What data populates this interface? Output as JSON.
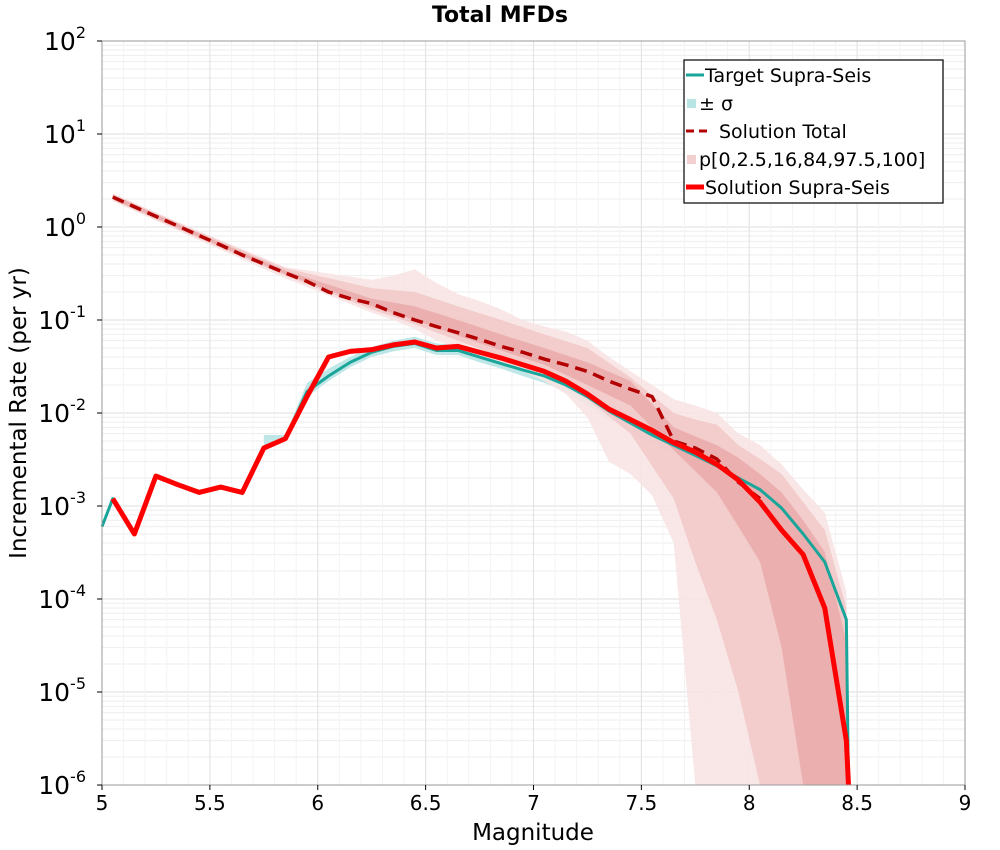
{
  "chart_data": {
    "type": "line",
    "title": "Total MFDs",
    "xlabel": "Magnitude",
    "ylabel": "Incremental Rate (per yr)",
    "xlim": [
      5,
      9
    ],
    "ylim": [
      1e-06,
      100
    ],
    "yscale": "log",
    "grid": true,
    "legend_position": "top-right",
    "x_ticks": [
      "5",
      "5.5",
      "6",
      "6.5",
      "7",
      "7.5",
      "8",
      "8.5",
      "9"
    ],
    "y_ticks": [
      {
        "base": "10",
        "exp": "2"
      },
      {
        "base": "10",
        "exp": "1"
      },
      {
        "base": "10",
        "exp": "0"
      },
      {
        "base": "10",
        "exp": "-1"
      },
      {
        "base": "10",
        "exp": "-2"
      },
      {
        "base": "10",
        "exp": "-3"
      },
      {
        "base": "10",
        "exp": "-4"
      },
      {
        "base": "10",
        "exp": "-5"
      },
      {
        "base": "10",
        "exp": "-6"
      }
    ],
    "legend": [
      {
        "label": "Target Supra-Seis",
        "style": "line",
        "color": "#1aa59a"
      },
      {
        "label": "± σ",
        "style": "patch",
        "color": "#b9e4e4"
      },
      {
        "label": "Solution Total",
        "style": "dashed",
        "color": "#b30000"
      },
      {
        "label": "p[0,2.5,16,84,97.5,100]",
        "style": "patch",
        "color": "#f2d0d0"
      },
      {
        "label": "Solution Supra-Seis",
        "style": "thick",
        "color": "#ff0000"
      }
    ],
    "series": [
      {
        "name": "Target Supra-Seis",
        "color": "#1aa59a",
        "x": [
          5.0,
          5.05,
          5.15,
          5.25,
          5.35,
          5.45,
          5.55,
          5.65,
          5.75,
          5.85,
          5.95,
          6.05,
          6.15,
          6.25,
          6.35,
          6.45,
          6.55,
          6.65,
          6.75,
          6.85,
          6.95,
          7.05,
          7.15,
          7.25,
          7.35,
          7.45,
          7.55,
          7.65,
          7.75,
          7.85,
          7.95,
          8.05,
          8.15,
          8.25,
          8.35,
          8.45,
          8.46
        ],
        "y": [
          0.0006,
          0.0012,
          0.0005,
          0.0021,
          0.0017,
          0.0014,
          0.0016,
          0.0014,
          0.0042,
          0.0053,
          0.017,
          0.025,
          0.035,
          0.045,
          0.052,
          0.056,
          0.047,
          0.047,
          0.04,
          0.034,
          0.029,
          0.025,
          0.02,
          0.015,
          0.0105,
          0.0078,
          0.0058,
          0.0045,
          0.0035,
          0.0027,
          0.002,
          0.0015,
          0.00095,
          0.0005,
          0.00025,
          6e-05,
          1e-06
        ]
      },
      {
        "name": "Solution Total",
        "color": "#b30000",
        "x": [
          5.05,
          5.15,
          5.25,
          5.35,
          5.45,
          5.55,
          5.65,
          5.75,
          5.85,
          5.95,
          6.05,
          6.15,
          6.25,
          6.35,
          6.45,
          6.55,
          6.65,
          6.75,
          6.85,
          6.95,
          7.05,
          7.15,
          7.25,
          7.35,
          7.45,
          7.55,
          7.65,
          7.75,
          7.85,
          7.95,
          8.05
        ],
        "y": [
          2.1,
          1.65,
          1.3,
          1.03,
          0.81,
          0.64,
          0.5,
          0.4,
          0.32,
          0.26,
          0.2,
          0.17,
          0.15,
          0.12,
          0.1,
          0.085,
          0.073,
          0.062,
          0.052,
          0.045,
          0.038,
          0.033,
          0.028,
          0.022,
          0.018,
          0.015,
          0.005,
          0.0042,
          0.0032,
          0.0018,
          0.0012
        ]
      },
      {
        "name": "Solution Supra-Seis",
        "color": "#ff0000",
        "x": [
          5.05,
          5.15,
          5.25,
          5.35,
          5.45,
          5.55,
          5.65,
          5.75,
          5.85,
          5.95,
          6.05,
          6.15,
          6.25,
          6.35,
          6.45,
          6.55,
          6.65,
          6.75,
          6.85,
          6.95,
          7.05,
          7.15,
          7.25,
          7.35,
          7.45,
          7.55,
          7.65,
          7.75,
          7.85,
          7.95,
          8.05,
          8.15,
          8.25,
          8.35,
          8.45,
          8.46
        ],
        "y": [
          0.0012,
          0.0005,
          0.0021,
          0.0017,
          0.0014,
          0.0016,
          0.0014,
          0.0042,
          0.0053,
          0.015,
          0.04,
          0.046,
          0.048,
          0.054,
          0.058,
          0.05,
          0.052,
          0.045,
          0.039,
          0.033,
          0.028,
          0.022,
          0.016,
          0.011,
          0.0085,
          0.0065,
          0.0048,
          0.0038,
          0.0028,
          0.0019,
          0.0011,
          0.00055,
          0.0003,
          8e-05,
          3e-06,
          1e-06
        ]
      }
    ],
    "bands": [
      {
        "name": "± σ",
        "color": "#b9e4e4",
        "x": [
          5.75,
          5.85,
          5.95,
          6.05,
          6.15,
          6.25,
          6.35,
          6.45,
          6.55,
          6.65,
          6.75,
          6.85,
          6.95,
          7.05,
          7.15,
          7.25,
          7.35,
          7.45,
          7.55,
          7.65,
          7.75,
          7.85,
          7.95,
          8.05,
          8.15,
          8.25,
          8.35,
          8.45
        ],
        "lower": [
          0.0045,
          0.005,
          0.015,
          0.022,
          0.031,
          0.04,
          0.046,
          0.05,
          0.042,
          0.042,
          0.035,
          0.03,
          0.025,
          0.021,
          0.017,
          0.012,
          0.0085,
          0.0063,
          0.0047,
          0.0036,
          0.0028,
          0.0021,
          0.0016,
          0.0011,
          0.0007,
          0.00035,
          0.00016,
          3.5e-05
        ],
        "upper": [
          0.0058,
          0.0058,
          0.021,
          0.03,
          0.04,
          0.051,
          0.06,
          0.066,
          0.056,
          0.054,
          0.047,
          0.04,
          0.034,
          0.03,
          0.024,
          0.018,
          0.013,
          0.0096,
          0.0072,
          0.0056,
          0.0044,
          0.0034,
          0.0026,
          0.002,
          0.0013,
          0.0007,
          0.00035,
          9e-05
        ]
      },
      {
        "name": "p[0,100]",
        "color": "#f8e3e3",
        "x": [
          5.05,
          5.45,
          5.85,
          6.25,
          6.35,
          6.45,
          6.55,
          6.65,
          6.75,
          6.85,
          6.95,
          7.05,
          7.15,
          7.25,
          7.35,
          7.45,
          7.55,
          7.65,
          7.75,
          7.85,
          7.95,
          8.05,
          8.15,
          8.25,
          8.35,
          8.45
        ],
        "lower": [
          1.9,
          0.72,
          0.28,
          0.12,
          0.1,
          0.08,
          0.06,
          0.05,
          0.04,
          0.033,
          0.028,
          0.022,
          0.016,
          0.009,
          0.003,
          0.0022,
          0.0013,
          0.0004,
          1e-06,
          1e-06,
          1e-06,
          1e-06,
          1e-06,
          1e-06,
          1e-06,
          1e-06
        ],
        "upper": [
          2.3,
          0.9,
          0.37,
          0.27,
          0.3,
          0.35,
          0.25,
          0.19,
          0.16,
          0.13,
          0.1,
          0.085,
          0.075,
          0.06,
          0.04,
          0.028,
          0.02,
          0.014,
          0.012,
          0.01,
          0.006,
          0.0045,
          0.0028,
          0.0015,
          0.00085,
          0.00012
        ]
      },
      {
        "name": "p[2.5,97.5]",
        "color": "#f2c9c9",
        "x": [
          5.05,
          5.45,
          5.85,
          6.25,
          6.45,
          6.65,
          6.85,
          7.05,
          7.25,
          7.45,
          7.65,
          7.75,
          7.85,
          7.95,
          8.05,
          8.15,
          8.25,
          8.35,
          8.45
        ],
        "lower": [
          1.95,
          0.75,
          0.3,
          0.13,
          0.09,
          0.06,
          0.04,
          0.027,
          0.014,
          0.006,
          0.0012,
          0.00025,
          6e-05,
          1e-05,
          1e-06,
          1e-06,
          1e-06,
          1e-06,
          1e-06
        ],
        "upper": [
          2.25,
          0.88,
          0.36,
          0.22,
          0.2,
          0.14,
          0.1,
          0.07,
          0.05,
          0.024,
          0.01,
          0.0085,
          0.0075,
          0.0045,
          0.0032,
          0.0022,
          0.0011,
          0.00055,
          8e-05
        ]
      },
      {
        "name": "p[16,84]",
        "color": "#e9a6a6",
        "x": [
          5.05,
          5.45,
          5.85,
          6.25,
          6.45,
          6.65,
          6.85,
          7.05,
          7.25,
          7.45,
          7.65,
          7.85,
          7.95,
          8.05,
          8.15,
          8.25,
          8.35,
          8.45
        ],
        "lower": [
          2.0,
          0.78,
          0.31,
          0.14,
          0.1,
          0.068,
          0.047,
          0.033,
          0.02,
          0.012,
          0.004,
          0.0014,
          0.0006,
          0.00025,
          3e-05,
          1e-06,
          1e-06,
          1e-06
        ],
        "upper": [
          2.2,
          0.85,
          0.34,
          0.17,
          0.14,
          0.1,
          0.07,
          0.05,
          0.035,
          0.022,
          0.007,
          0.0045,
          0.0033,
          0.0022,
          0.0014,
          0.0007,
          0.00032,
          3.5e-05
        ]
      }
    ]
  }
}
